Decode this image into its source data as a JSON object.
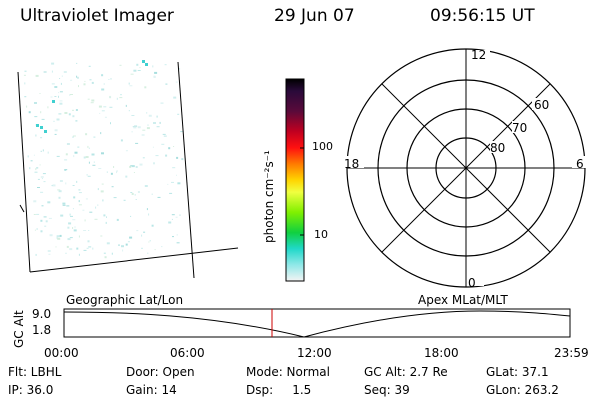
{
  "header": {
    "instrument": "Ultraviolet Imager",
    "date": "29 Jun 07",
    "time": "09:56:15 UT"
  },
  "colorbar": {
    "unit_label": "photon cm⁻²s⁻¹",
    "tick_labels": [
      "100",
      "10"
    ]
  },
  "polar_plot": {
    "mlt_labels": {
      "top": "12",
      "right": "6",
      "bottom": "0",
      "left": "18"
    },
    "lat_labels": [
      "60",
      "70",
      "80"
    ]
  },
  "timeline": {
    "axis_label": "GC Alt",
    "y_ticks": [
      "9.0",
      "1.8"
    ],
    "left_title": "Geographic Lat/Lon",
    "right_title": "Apex  MLat/MLT",
    "x_ticks": [
      "00:00",
      "06:00",
      "12:00",
      "18:00",
      "23:59"
    ],
    "marker_color": "#cc0000"
  },
  "footer": {
    "row1": {
      "filter": "Flt: LBHL",
      "door": "Door: Open",
      "mode": "Mode: Normal",
      "gc_alt": "GC Alt: 2.7 Re",
      "glat": "GLat:  37.1"
    },
    "row2": {
      "ip": "IP: 36.0",
      "gain": "Gain: 14",
      "dsp": "Dsp:     1.5",
      "seq": "Seq: 39",
      "glon": "GLon: 263.2"
    }
  }
}
